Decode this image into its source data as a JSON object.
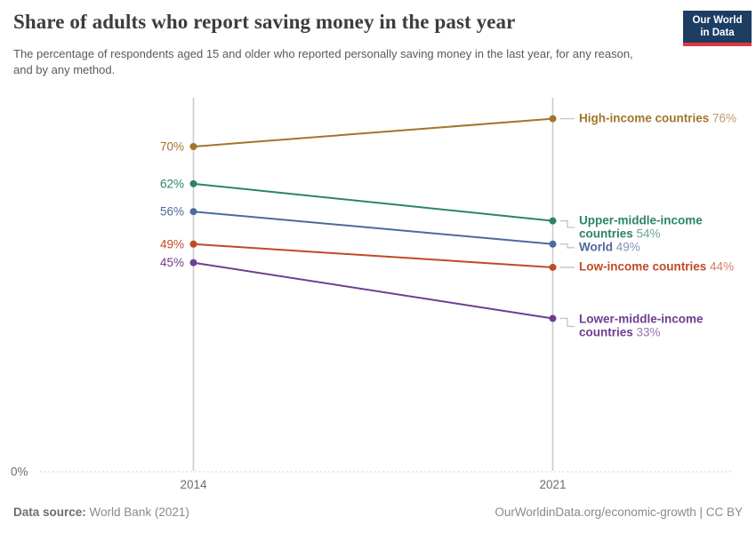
{
  "header": {
    "title": "Share of adults who report saving money in the past year",
    "subtitle": "The percentage of respondents aged 15 and older who reported personally saving money in the last year, for any reason, and by any method.",
    "logo": {
      "line1": "Our World",
      "line2": "in Data",
      "bg_color": "#1d3d63",
      "accent_color": "#e0373f"
    }
  },
  "footer": {
    "source_label": "Data source:",
    "source_value": "World Bank (2021)",
    "credit": "OurWorldinData.org/economic-growth | CC BY"
  },
  "chart_data": {
    "type": "line",
    "variant": "slope",
    "title": "Share of adults who report saving money in the past year",
    "x": [
      2014,
      2021
    ],
    "x_labels": [
      "2014",
      "2021"
    ],
    "ylim": [
      0,
      80
    ],
    "baseline_label": "0%",
    "grid": "dotted baseline at 0% only; vertical axis line at each year",
    "legend_position": "labels at right end of each line",
    "series": [
      {
        "name": "High-income countries",
        "values": [
          70,
          76
        ],
        "labels": [
          "70%",
          "76%"
        ],
        "color": "#a2752c"
      },
      {
        "name": "Upper-middle-income countries",
        "values": [
          62,
          54
        ],
        "labels": [
          "62%",
          "54%"
        ],
        "color": "#2c8465"
      },
      {
        "name": "World",
        "values": [
          56,
          49
        ],
        "labels": [
          "56%",
          "49%"
        ],
        "color": "#4c6a9c"
      },
      {
        "name": "Low-income countries",
        "values": [
          49,
          44
        ],
        "labels": [
          "49%",
          "44%"
        ],
        "color": "#bf4a26"
      },
      {
        "name": "Lower-middle-income countries",
        "values": [
          45,
          33
        ],
        "labels": [
          "45%",
          "33%"
        ],
        "color": "#6d3e91"
      }
    ]
  }
}
